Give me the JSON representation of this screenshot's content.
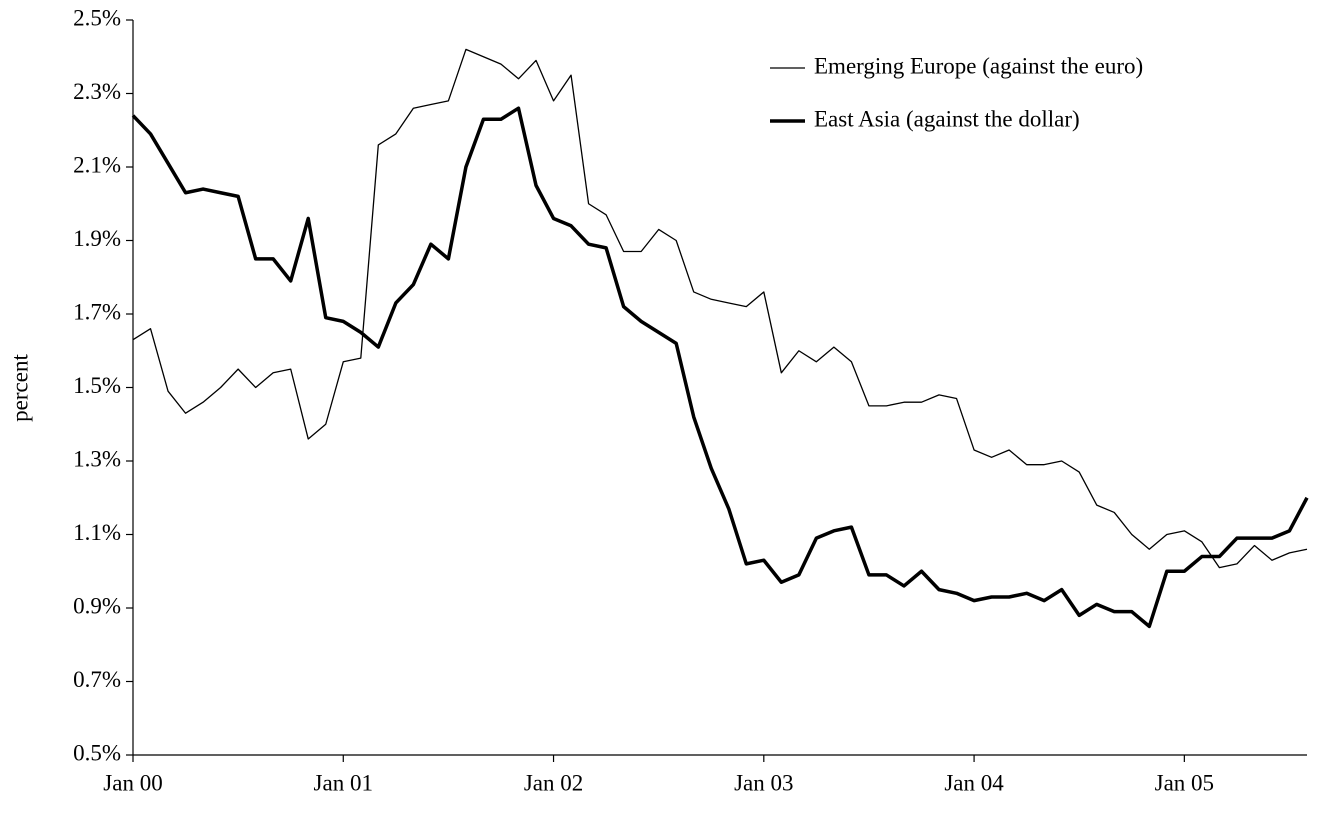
{
  "chart_data": {
    "type": "line",
    "ylabel": "percent",
    "x": [
      "2000-01",
      "2000-02",
      "2000-03",
      "2000-04",
      "2000-05",
      "2000-06",
      "2000-07",
      "2000-08",
      "2000-09",
      "2000-10",
      "2000-11",
      "2000-12",
      "2001-01",
      "2001-02",
      "2001-03",
      "2001-04",
      "2001-05",
      "2001-06",
      "2001-07",
      "2001-08",
      "2001-09",
      "2001-10",
      "2001-11",
      "2001-12",
      "2002-01",
      "2002-02",
      "2002-03",
      "2002-04",
      "2002-05",
      "2002-06",
      "2002-07",
      "2002-08",
      "2002-09",
      "2002-10",
      "2002-11",
      "2002-12",
      "2003-01",
      "2003-02",
      "2003-03",
      "2003-04",
      "2003-05",
      "2003-06",
      "2003-07",
      "2003-08",
      "2003-09",
      "2003-10",
      "2003-11",
      "2003-12",
      "2004-01",
      "2004-02",
      "2004-03",
      "2004-04",
      "2004-05",
      "2004-06",
      "2004-07",
      "2004-08",
      "2004-09",
      "2004-10",
      "2004-11",
      "2004-12",
      "2005-01",
      "2005-02",
      "2005-03",
      "2005-04",
      "2005-05",
      "2005-06",
      "2005-07",
      "2005-08"
    ],
    "series": [
      {
        "name": "Emerging Europe (against the euro)",
        "color": "#000000",
        "width": 1.3,
        "values": [
          1.63,
          1.66,
          1.49,
          1.43,
          1.46,
          1.5,
          1.55,
          1.5,
          1.54,
          1.55,
          1.36,
          1.4,
          1.57,
          1.58,
          2.16,
          2.19,
          2.26,
          2.27,
          2.28,
          2.42,
          2.4,
          2.38,
          2.34,
          2.39,
          2.28,
          2.35,
          2.0,
          1.97,
          1.87,
          1.87,
          1.93,
          1.9,
          1.76,
          1.74,
          1.73,
          1.72,
          1.76,
          1.54,
          1.6,
          1.57,
          1.61,
          1.57,
          1.45,
          1.45,
          1.46,
          1.46,
          1.48,
          1.47,
          1.33,
          1.31,
          1.33,
          1.29,
          1.29,
          1.3,
          1.27,
          1.18,
          1.16,
          1.1,
          1.06,
          1.1,
          1.11,
          1.08,
          1.01,
          1.02,
          1.07,
          1.03,
          1.05,
          1.06
        ]
      },
      {
        "name": "East Asia (against the dollar)",
        "color": "#000000",
        "width": 3.5,
        "values": [
          2.24,
          2.19,
          2.11,
          2.03,
          2.04,
          2.03,
          2.02,
          1.85,
          1.85,
          1.79,
          1.96,
          1.69,
          1.68,
          1.65,
          1.61,
          1.73,
          1.78,
          1.89,
          1.85,
          2.1,
          2.23,
          2.23,
          2.26,
          2.05,
          1.96,
          1.94,
          1.89,
          1.88,
          1.72,
          1.68,
          1.65,
          1.62,
          1.42,
          1.28,
          1.17,
          1.02,
          1.03,
          0.97,
          0.99,
          1.09,
          1.11,
          1.12,
          0.99,
          0.99,
          0.96,
          1.0,
          0.95,
          0.94,
          0.92,
          0.93,
          0.93,
          0.94,
          0.92,
          0.95,
          0.88,
          0.91,
          0.89,
          0.89,
          0.85,
          1.0,
          1.0,
          1.04,
          1.04,
          1.09,
          1.09,
          1.09,
          1.11,
          1.2
        ]
      }
    ],
    "xlim": [
      "2000-01",
      "2005-08"
    ],
    "xticks": [
      {
        "value": "2000-01",
        "label": "Jan 00"
      },
      {
        "value": "2001-01",
        "label": "Jan 01"
      },
      {
        "value": "2002-01",
        "label": "Jan 02"
      },
      {
        "value": "2003-01",
        "label": "Jan 03"
      },
      {
        "value": "2004-01",
        "label": "Jan 04"
      },
      {
        "value": "2005-01",
        "label": "Jan 05"
      }
    ],
    "ylim": [
      0.5,
      2.5
    ],
    "yticks": [
      {
        "value": 0.5,
        "label": "0.5%"
      },
      {
        "value": 0.7,
        "label": "0.7%"
      },
      {
        "value": 0.9,
        "label": "0.9%"
      },
      {
        "value": 1.1,
        "label": "1.1%"
      },
      {
        "value": 1.3,
        "label": "1.3%"
      },
      {
        "value": 1.5,
        "label": "1.5%"
      },
      {
        "value": 1.7,
        "label": "1.7%"
      },
      {
        "value": 1.9,
        "label": "1.9%"
      },
      {
        "value": 2.1,
        "label": "2.1%"
      },
      {
        "value": 2.3,
        "label": "2.3%"
      },
      {
        "value": 2.5,
        "label": "2.5%"
      }
    ],
    "grid": false,
    "legend": "upper right"
  }
}
